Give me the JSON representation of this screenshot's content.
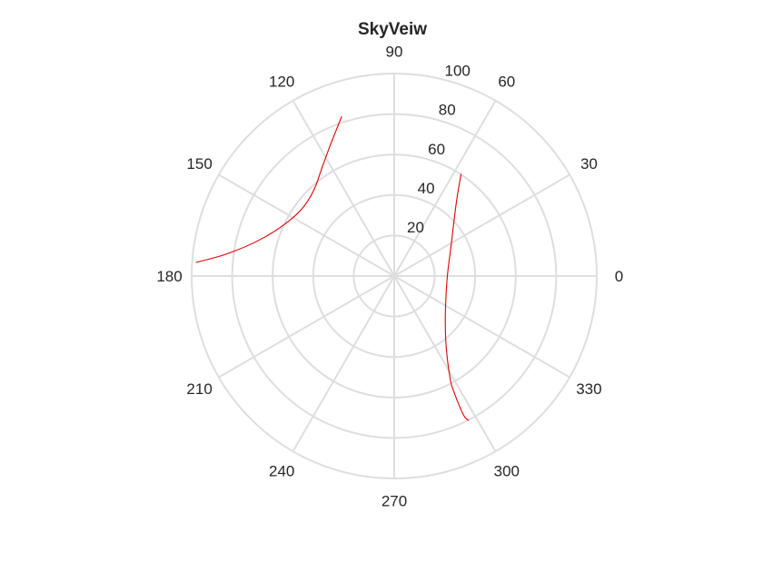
{
  "chart_data": {
    "type": "polar-line",
    "title": "SkyVeiw",
    "theta_unit": "degrees",
    "theta_zero_location": "right",
    "theta_direction": "counterclockwise",
    "theta_ticks": [
      0,
      30,
      60,
      90,
      120,
      150,
      180,
      210,
      240,
      270,
      300,
      330
    ],
    "theta_tick_labels": [
      "0",
      "30",
      "60",
      "90",
      "120",
      "150",
      "180",
      "210",
      "240",
      "270",
      "300",
      "330"
    ],
    "r_lim": [
      0,
      100
    ],
    "r_ticks": [
      20,
      40,
      60,
      80,
      100
    ],
    "r_tick_labels": [
      "20",
      "40",
      "60",
      "80",
      "100"
    ],
    "r_tick_label_angle": 75,
    "grid": true,
    "colors": {
      "grid": "#dedede",
      "series": "#e00000",
      "text": "#262626"
    },
    "series": [
      {
        "color": "#e00000",
        "points": [
          {
            "theta": 108.2,
            "r": 83.0
          },
          {
            "theta": 111.7,
            "r": 77.5
          },
          {
            "theta": 116.4,
            "r": 71.5
          },
          {
            "theta": 123.2,
            "r": 64.7
          },
          {
            "theta": 133.3,
            "r": 58.0
          },
          {
            "theta": 144.4,
            "r": 56.4
          },
          {
            "theta": 155.7,
            "r": 60.4
          },
          {
            "theta": 165.5,
            "r": 69.5
          },
          {
            "theta": 172.4,
            "r": 83.2
          },
          {
            "theta": 176.1,
            "r": 98.1
          }
        ]
      },
      {
        "color": "#e00000",
        "points": [
          {
            "theta": 56.8,
            "r": 60.3
          },
          {
            "theta": 51.3,
            "r": 49.6
          },
          {
            "theta": 42.5,
            "r": 40.0
          },
          {
            "theta": 26.7,
            "r": 31.3
          },
          {
            "theta": 2.9,
            "r": 26.4
          },
          {
            "theta": 337.7,
            "r": 27.6
          },
          {
            "theta": 318.4,
            "r": 33.7
          },
          {
            "theta": 306.0,
            "r": 43.7
          },
          {
            "theta": 298.8,
            "r": 57.1
          },
          {
            "theta": 297.3,
            "r": 64.0
          },
          {
            "theta": 296.5,
            "r": 76.7
          },
          {
            "theta": 297.3,
            "r": 80.3
          }
        ]
      }
    ]
  }
}
